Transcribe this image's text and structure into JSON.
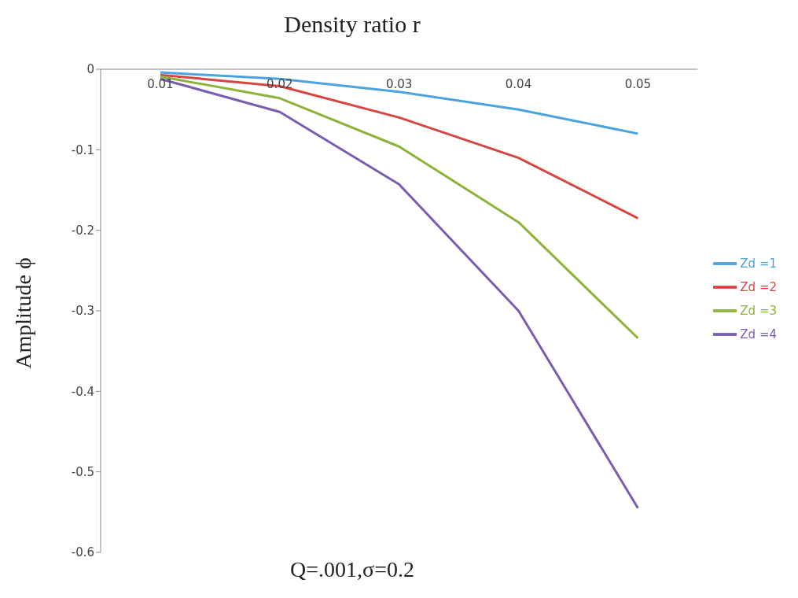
{
  "chart_data": {
    "type": "line",
    "xlabel": "Density ratio r",
    "ylabel": "Amplitude ϕ",
    "annotations": [
      "Q=.001,σ=0.2"
    ],
    "categories": [
      "0.01",
      "0.02",
      "0.03",
      "0.04",
      "0.05"
    ],
    "series": [
      {
        "name": "Zd =1",
        "color": "#4aa3df",
        "values": [
          -0.004,
          -0.012,
          -0.028,
          -0.05,
          -0.08
        ]
      },
      {
        "name": "Zd =2",
        "color": "#d64541",
        "values": [
          -0.007,
          -0.021,
          -0.06,
          -0.11,
          -0.185
        ]
      },
      {
        "name": "Zd =3",
        "color": "#8db33a",
        "values": [
          -0.009,
          -0.036,
          -0.096,
          -0.19,
          -0.334
        ]
      },
      {
        "name": "Zd =4",
        "color": "#7a5cb0",
        "values": [
          -0.012,
          -0.053,
          -0.143,
          -0.3,
          -0.545
        ]
      }
    ],
    "ylim": [
      -0.6,
      0
    ],
    "yticks": [
      0,
      -0.1,
      -0.2,
      -0.3,
      -0.4,
      -0.5,
      -0.6
    ],
    "grid": false,
    "legend": "right",
    "marker": "none",
    "line_style": "solid"
  }
}
